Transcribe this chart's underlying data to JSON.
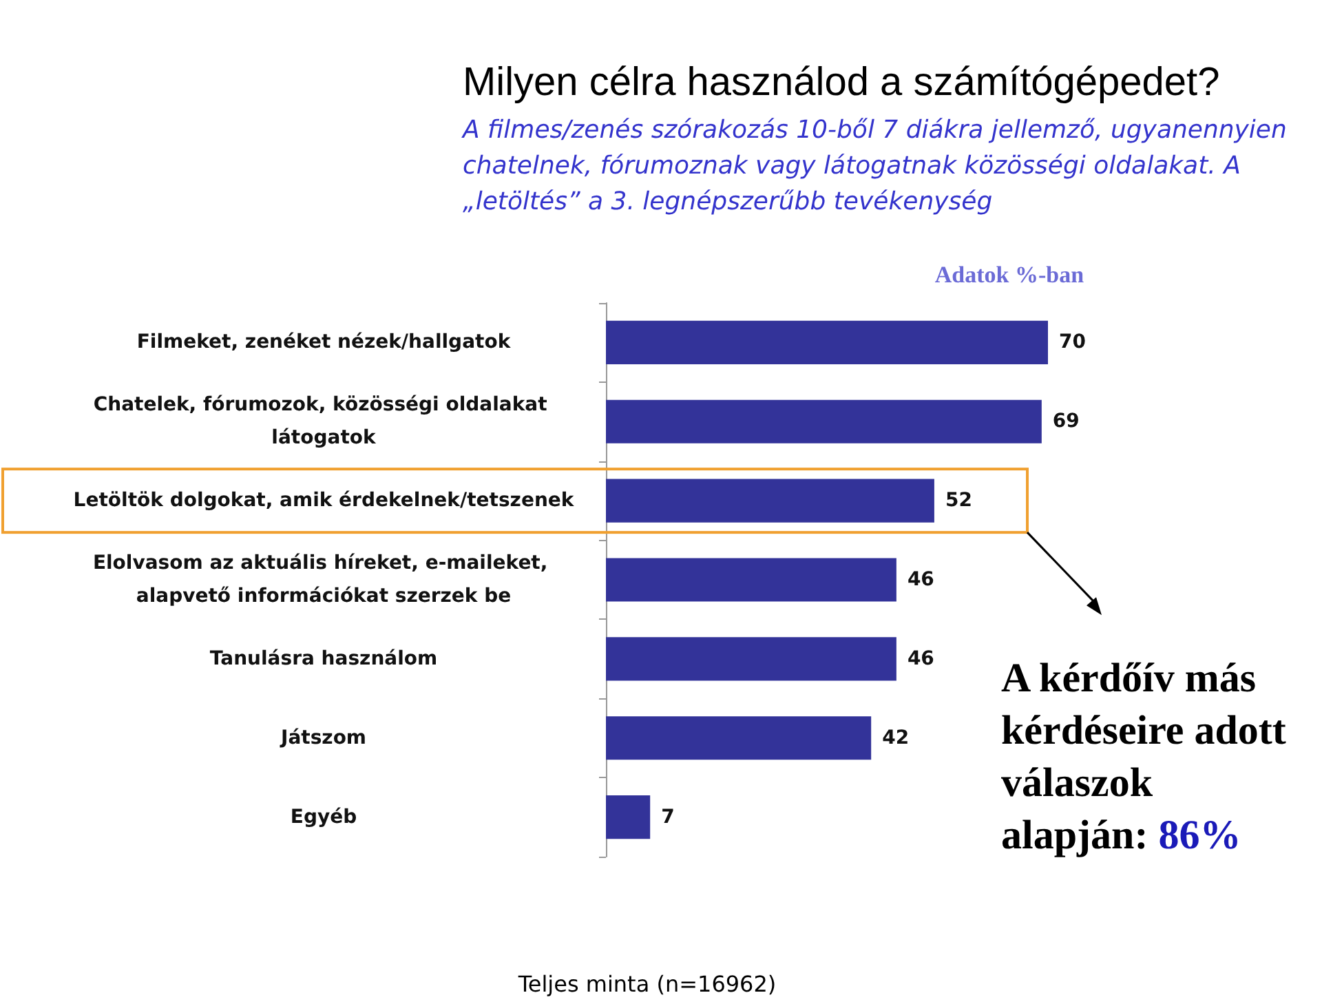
{
  "chart_data": {
    "type": "bar",
    "orientation": "horizontal",
    "title": "Milyen célra használod a számítógépedet?",
    "subtitle": "A filmes/zenés szórakozás 10-ből 7 diákra jellemző, ugyanennyien chatelnek, fórumoznak vagy látogatnak közösségi oldalakat. A „letöltés” a 3. legnépszerűbb tevékenység",
    "categories": [
      "Filmeket, zenéket nézek/hallgatok",
      "Chatelek, fórumozok, közösségi oldalakat látogatok",
      "Letöltök dolgokat, amik érdekelnek/tetszenek",
      "Elolvasom az aktuális híreket, e-maileket, alapvető információkat szerzek be",
      "Tanulásra használom",
      "Játszom",
      "Egyéb"
    ],
    "values": [
      70,
      69,
      52,
      46,
      46,
      42,
      7
    ],
    "color": "#333399",
    "data_labels": true,
    "annotations": [
      "Adatok %-ban",
      "A kérdőív más kérdéseire adott válaszok alapján: 86%",
      "Teljes minta (n=16962)"
    ]
  }
}
